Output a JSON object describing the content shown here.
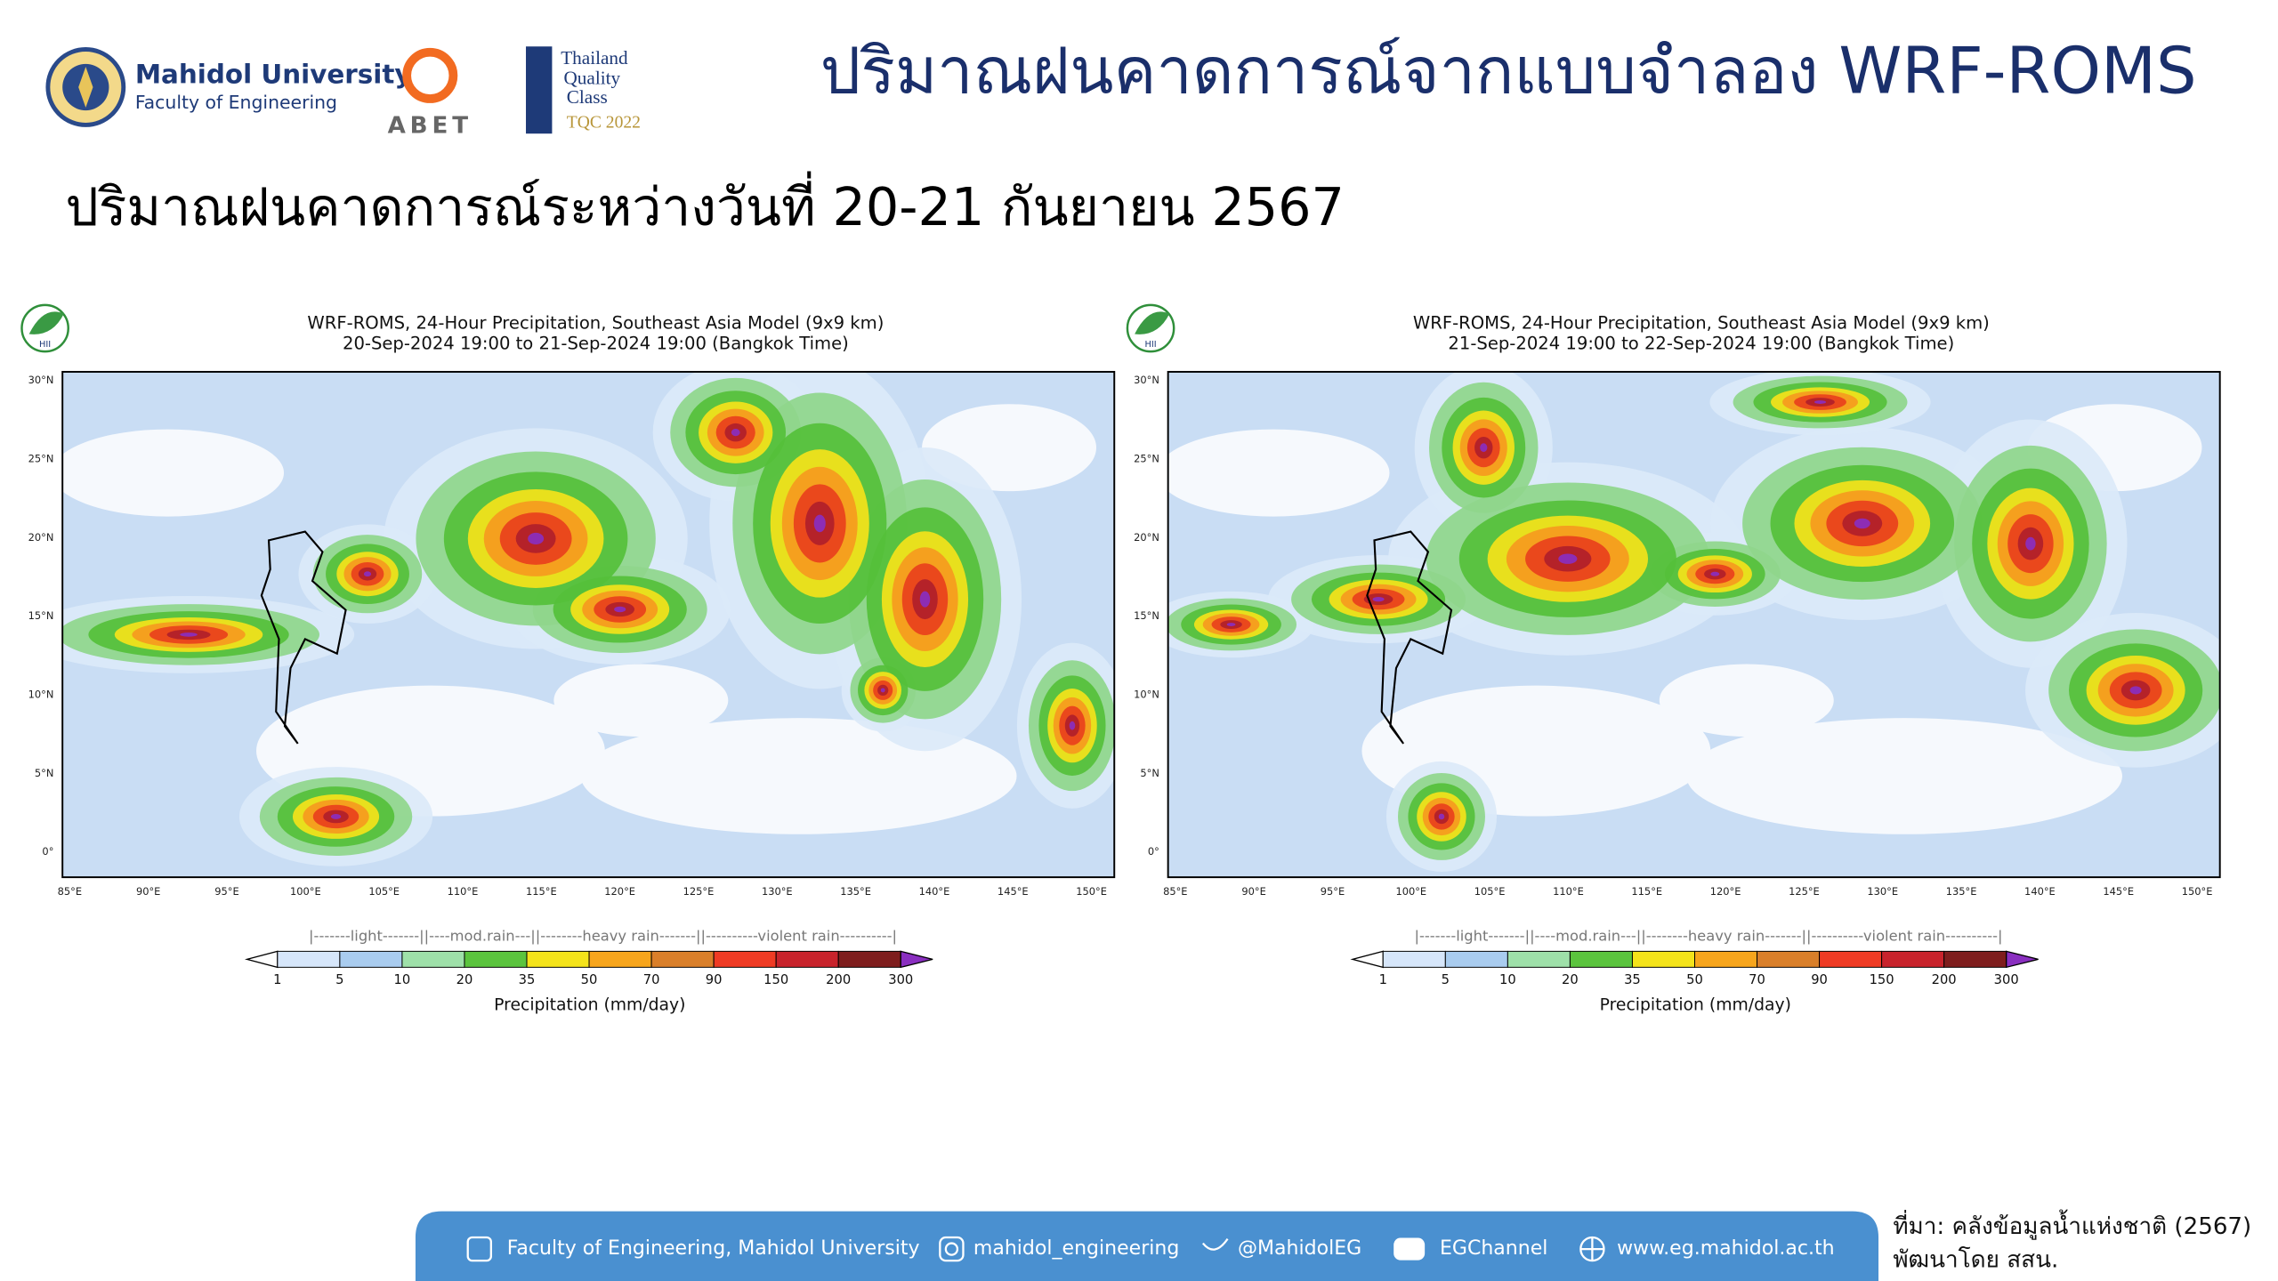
{
  "header": {
    "university": "Mahidol University",
    "faculty": "Faculty of Engineering",
    "abet": "ABET",
    "tqc": [
      "Thailand",
      "Quality",
      "Class",
      "TQC 2022"
    ]
  },
  "title": "ปริมาณฝนคาดการณ์จากแบบจำลอง WRF-ROMS",
  "subtitle": "ปริมาณฝนคาดการณ์ระหว่างวันที่ 20-21 กันยายน 2567",
  "maps": [
    {
      "title": [
        "WRF-ROMS, 24-Hour Precipitation, Southeast Asia Model (9x9 km)",
        "20-Sep-2024 19:00 to 21-Sep-2024 19:00 (Bangkok Time)"
      ],
      "logo": "HII",
      "lat_labels": [
        "30°N",
        "25°N",
        "20°N",
        "15°N",
        "10°N",
        "5°N",
        "0°"
      ],
      "lon_labels": [
        "85°E",
        "90°E",
        "95°E",
        "100°E",
        "105°E",
        "110°E",
        "115°E",
        "120°E",
        "125°E",
        "130°E",
        "135°E",
        "140°E",
        "145°E",
        "150°E"
      ],
      "legend_ranges": "|-------light-------||----mod.rain---||--------heavy rain-------||----------violent rain----------|",
      "colorbar_ticks": [
        1,
        5,
        10,
        20,
        35,
        50,
        70,
        90,
        150,
        200,
        300
      ],
      "colorbar_label": "Precipitation (mm/day)"
    },
    {
      "title": [
        "WRF-ROMS, 24-Hour Precipitation, Southeast Asia Model (9x9 km)",
        "21-Sep-2024 19:00 to 22-Sep-2024 19:00 (Bangkok Time)"
      ],
      "logo": "HII",
      "lat_labels": [
        "30°N",
        "25°N",
        "20°N",
        "15°N",
        "10°N",
        "5°N",
        "0°"
      ],
      "lon_labels": [
        "85°E",
        "90°E",
        "95°E",
        "100°E",
        "105°E",
        "110°E",
        "115°E",
        "120°E",
        "125°E",
        "130°E",
        "135°E",
        "140°E",
        "145°E",
        "150°E"
      ],
      "legend_ranges": "|-------light-------||----mod.rain---||--------heavy rain-------||----------violent rain----------|",
      "colorbar_ticks": [
        1,
        5,
        10,
        20,
        35,
        50,
        70,
        90,
        150,
        200,
        300
      ],
      "colorbar_label": "Precipitation (mm/day)"
    }
  ],
  "footer": {
    "items": [
      "Faculty of Engineering, Mahidol University",
      "mahidol_engineering",
      "@MahidolEG",
      "EGChannel",
      "www.eg.mahidol.ac.th"
    ],
    "source": [
      "ที่มา: คลังข้อมูลน้ำแห่งชาติ (2567)",
      "พัฒนาโดย สสน."
    ]
  }
}
